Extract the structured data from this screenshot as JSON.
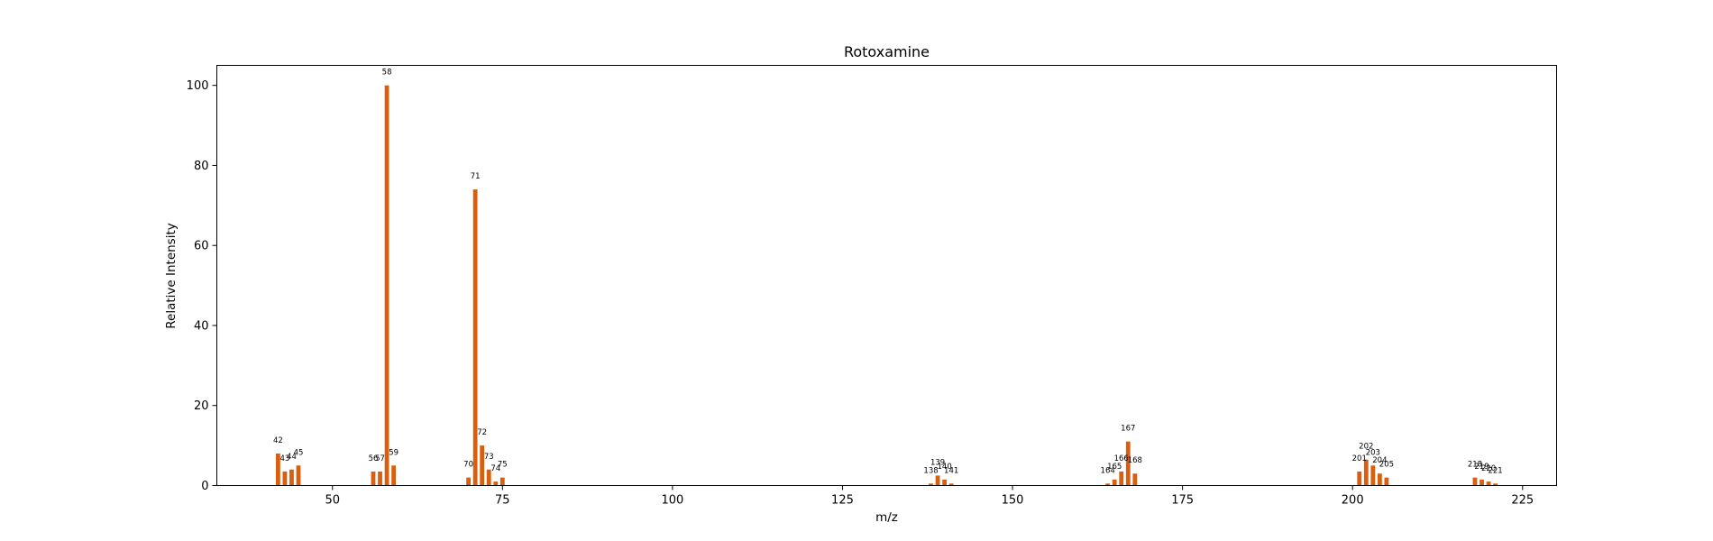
{
  "chart_data": {
    "type": "bar",
    "title": "Rotoxamine",
    "xlabel": "m/z",
    "ylabel": "Relative Intensity",
    "xlim": [
      33,
      230
    ],
    "ylim": [
      0,
      105
    ],
    "xticks": [
      50,
      75,
      100,
      125,
      150,
      175,
      200,
      225
    ],
    "yticks": [
      0,
      20,
      40,
      60,
      80,
      100
    ],
    "grid": false,
    "bar_color": "#d95f0e",
    "peaks": [
      {
        "mz": 42,
        "intensity": 8.0,
        "label": "42"
      },
      {
        "mz": 43,
        "intensity": 3.5,
        "label": "43"
      },
      {
        "mz": 44,
        "intensity": 4.0,
        "label": "44"
      },
      {
        "mz": 45,
        "intensity": 5.0,
        "label": "45"
      },
      {
        "mz": 56,
        "intensity": 3.5,
        "label": "56"
      },
      {
        "mz": 57,
        "intensity": 3.5,
        "label": "57"
      },
      {
        "mz": 58,
        "intensity": 100.0,
        "label": "58"
      },
      {
        "mz": 59,
        "intensity": 5.0,
        "label": "59"
      },
      {
        "mz": 70,
        "intensity": 2.0,
        "label": "70"
      },
      {
        "mz": 71,
        "intensity": 74.0,
        "label": "71"
      },
      {
        "mz": 72,
        "intensity": 10.0,
        "label": "72"
      },
      {
        "mz": 73,
        "intensity": 4.0,
        "label": "73"
      },
      {
        "mz": 74,
        "intensity": 1.0,
        "label": "74"
      },
      {
        "mz": 75,
        "intensity": 2.0,
        "label": "75"
      },
      {
        "mz": 138,
        "intensity": 0.5,
        "label": "138"
      },
      {
        "mz": 139,
        "intensity": 2.5,
        "label": "139"
      },
      {
        "mz": 140,
        "intensity": 1.5,
        "label": "140"
      },
      {
        "mz": 141,
        "intensity": 0.5,
        "label": "141"
      },
      {
        "mz": 164,
        "intensity": 0.5,
        "label": "164"
      },
      {
        "mz": 165,
        "intensity": 1.5,
        "label": "165"
      },
      {
        "mz": 166,
        "intensity": 3.5,
        "label": "166"
      },
      {
        "mz": 167,
        "intensity": 11.0,
        "label": "167"
      },
      {
        "mz": 168,
        "intensity": 3.0,
        "label": "168"
      },
      {
        "mz": 201,
        "intensity": 3.5,
        "label": "201"
      },
      {
        "mz": 202,
        "intensity": 6.5,
        "label": "202"
      },
      {
        "mz": 203,
        "intensity": 5.0,
        "label": "203"
      },
      {
        "mz": 204,
        "intensity": 3.0,
        "label": "204"
      },
      {
        "mz": 205,
        "intensity": 2.0,
        "label": "205"
      },
      {
        "mz": 218,
        "intensity": 2.0,
        "label": "218"
      },
      {
        "mz": 219,
        "intensity": 1.5,
        "label": "219"
      },
      {
        "mz": 220,
        "intensity": 1.0,
        "label": "220"
      },
      {
        "mz": 221,
        "intensity": 0.5,
        "label": "221"
      }
    ]
  }
}
